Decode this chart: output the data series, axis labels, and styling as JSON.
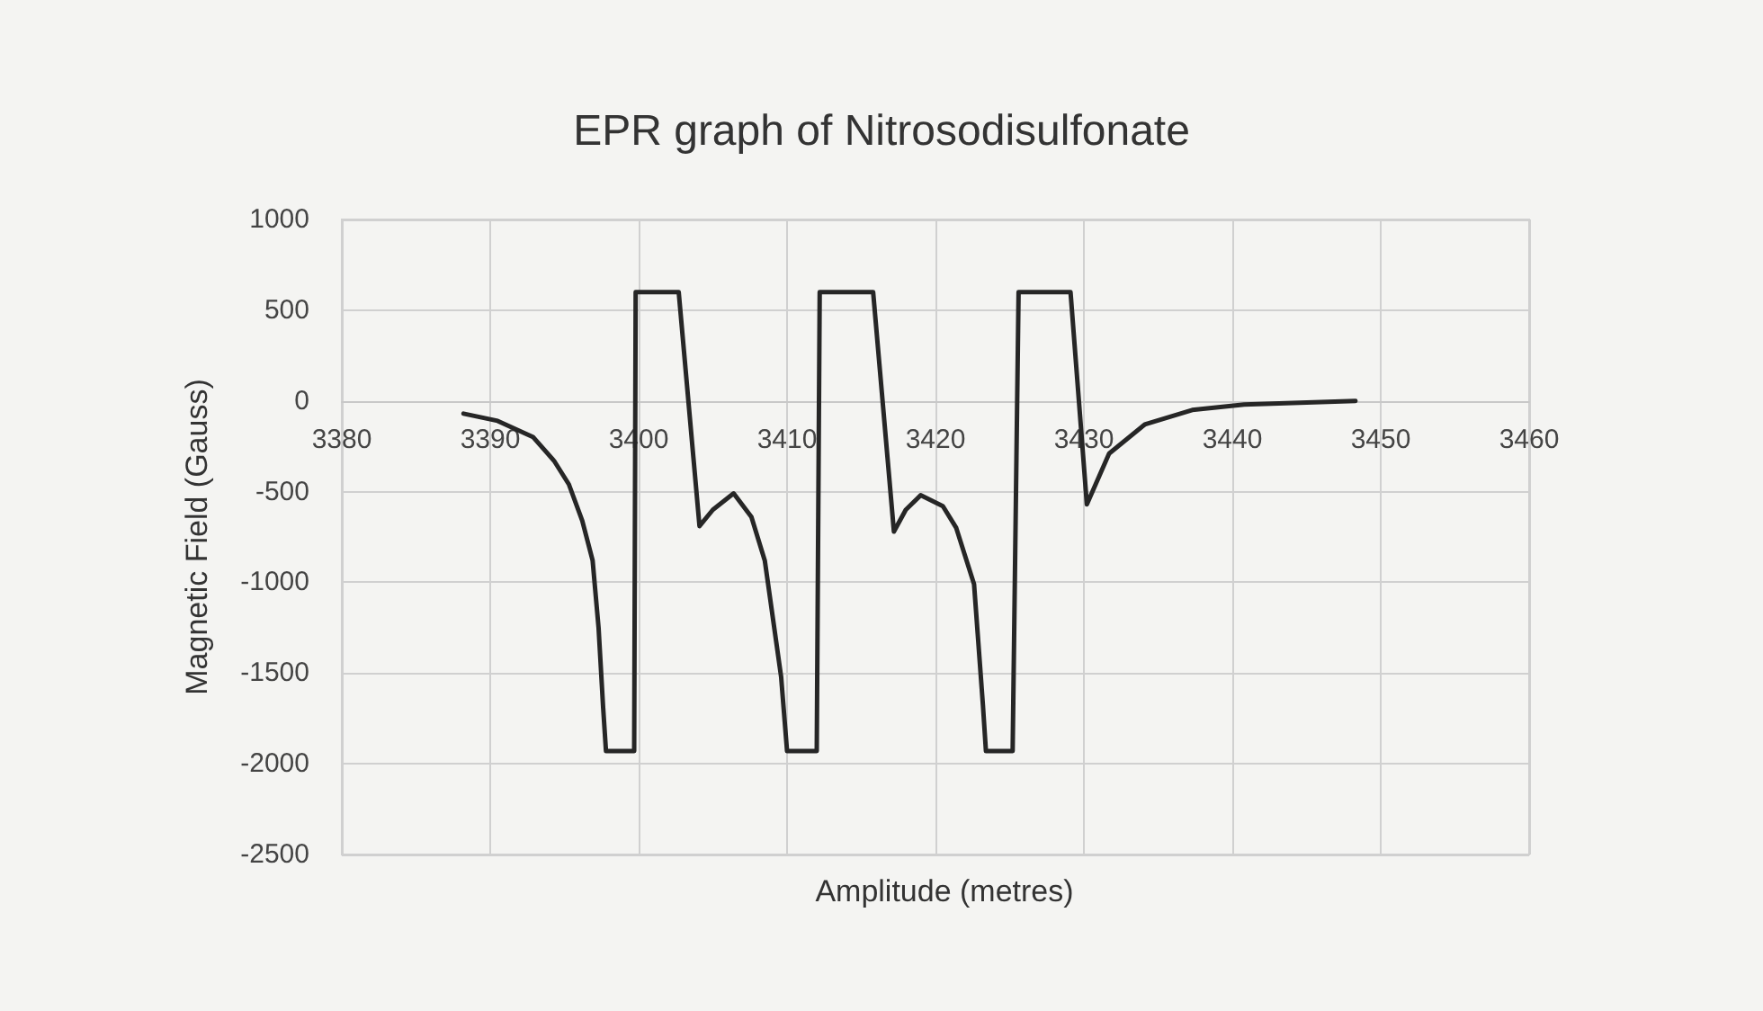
{
  "chart_data": {
    "type": "line",
    "title": "EPR graph of Nitrosodisulfonate",
    "xlabel": "Amplitude (metres)",
    "ylabel": "Magnetic Field (Gauss)",
    "series": [
      {
        "color": "#262626",
        "x": [
          3388.2,
          3390.5,
          3392.9,
          3394.3,
          3395.3,
          3396.2,
          3396.9,
          3397.3,
          3397.6,
          3397.8,
          3399.7,
          3399.8,
          3402.7,
          3404.1,
          3405,
          3406.4,
          3407.6,
          3408.5,
          3409.6,
          3410,
          3412,
          3412.2,
          3415.8,
          3417.2,
          3418,
          3419,
          3420.5,
          3421.4,
          3422.6,
          3423.2,
          3423.4,
          3425.2,
          3425.6,
          3429.1,
          3430.2,
          3431.7,
          3434.1,
          3437.3,
          3440.8,
          3448.3
        ],
        "values": [
          -70,
          -110,
          -200,
          -330,
          -460,
          -660,
          -880,
          -1250,
          -1680,
          -1930,
          -1930,
          600,
          600,
          -690,
          -600,
          -510,
          -640,
          -880,
          -1520,
          -1930,
          -1930,
          600,
          600,
          -720,
          -600,
          -520,
          -580,
          -700,
          -1010,
          -1680,
          -1930,
          -1930,
          600,
          600,
          -570,
          -290,
          -130,
          -50,
          -20,
          0
        ]
      }
    ],
    "xlim": [
      3380,
      3460
    ],
    "xticks": [
      3380,
      3390,
      3400,
      3410,
      3420,
      3430,
      3440,
      3450,
      3460
    ],
    "ylim": [
      -2500,
      1000
    ],
    "yticks": [
      -2500,
      -2000,
      -1500,
      -1000,
      -500,
      0,
      500,
      1000
    ],
    "grid": true,
    "marker": "none",
    "line_style": "solid"
  }
}
